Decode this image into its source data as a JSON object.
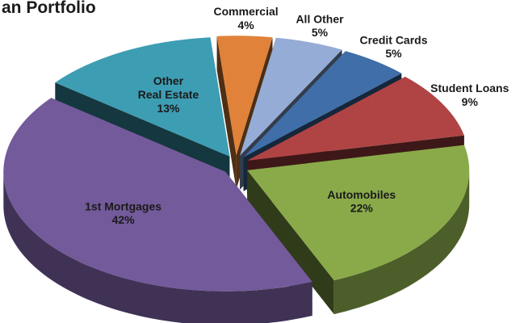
{
  "chart_data": {
    "type": "pie3d",
    "title": "an Portfolio",
    "categories": [
      "Commercial",
      "All Other",
      "Credit Cards",
      "Student Loans",
      "Automobiles",
      "1st Mortgages",
      "Other\nReal Estate"
    ],
    "values": [
      4,
      5,
      5,
      9,
      22,
      42,
      13
    ],
    "value_labels": [
      "4%",
      "5%",
      "5%",
      "9%",
      "22%",
      "42%",
      "13%"
    ],
    "colors": [
      "#e0823a",
      "#95acd6",
      "#3f6ea8",
      "#b04444",
      "#8aaa4a",
      "#735a9a",
      "#3d9db3"
    ]
  }
}
